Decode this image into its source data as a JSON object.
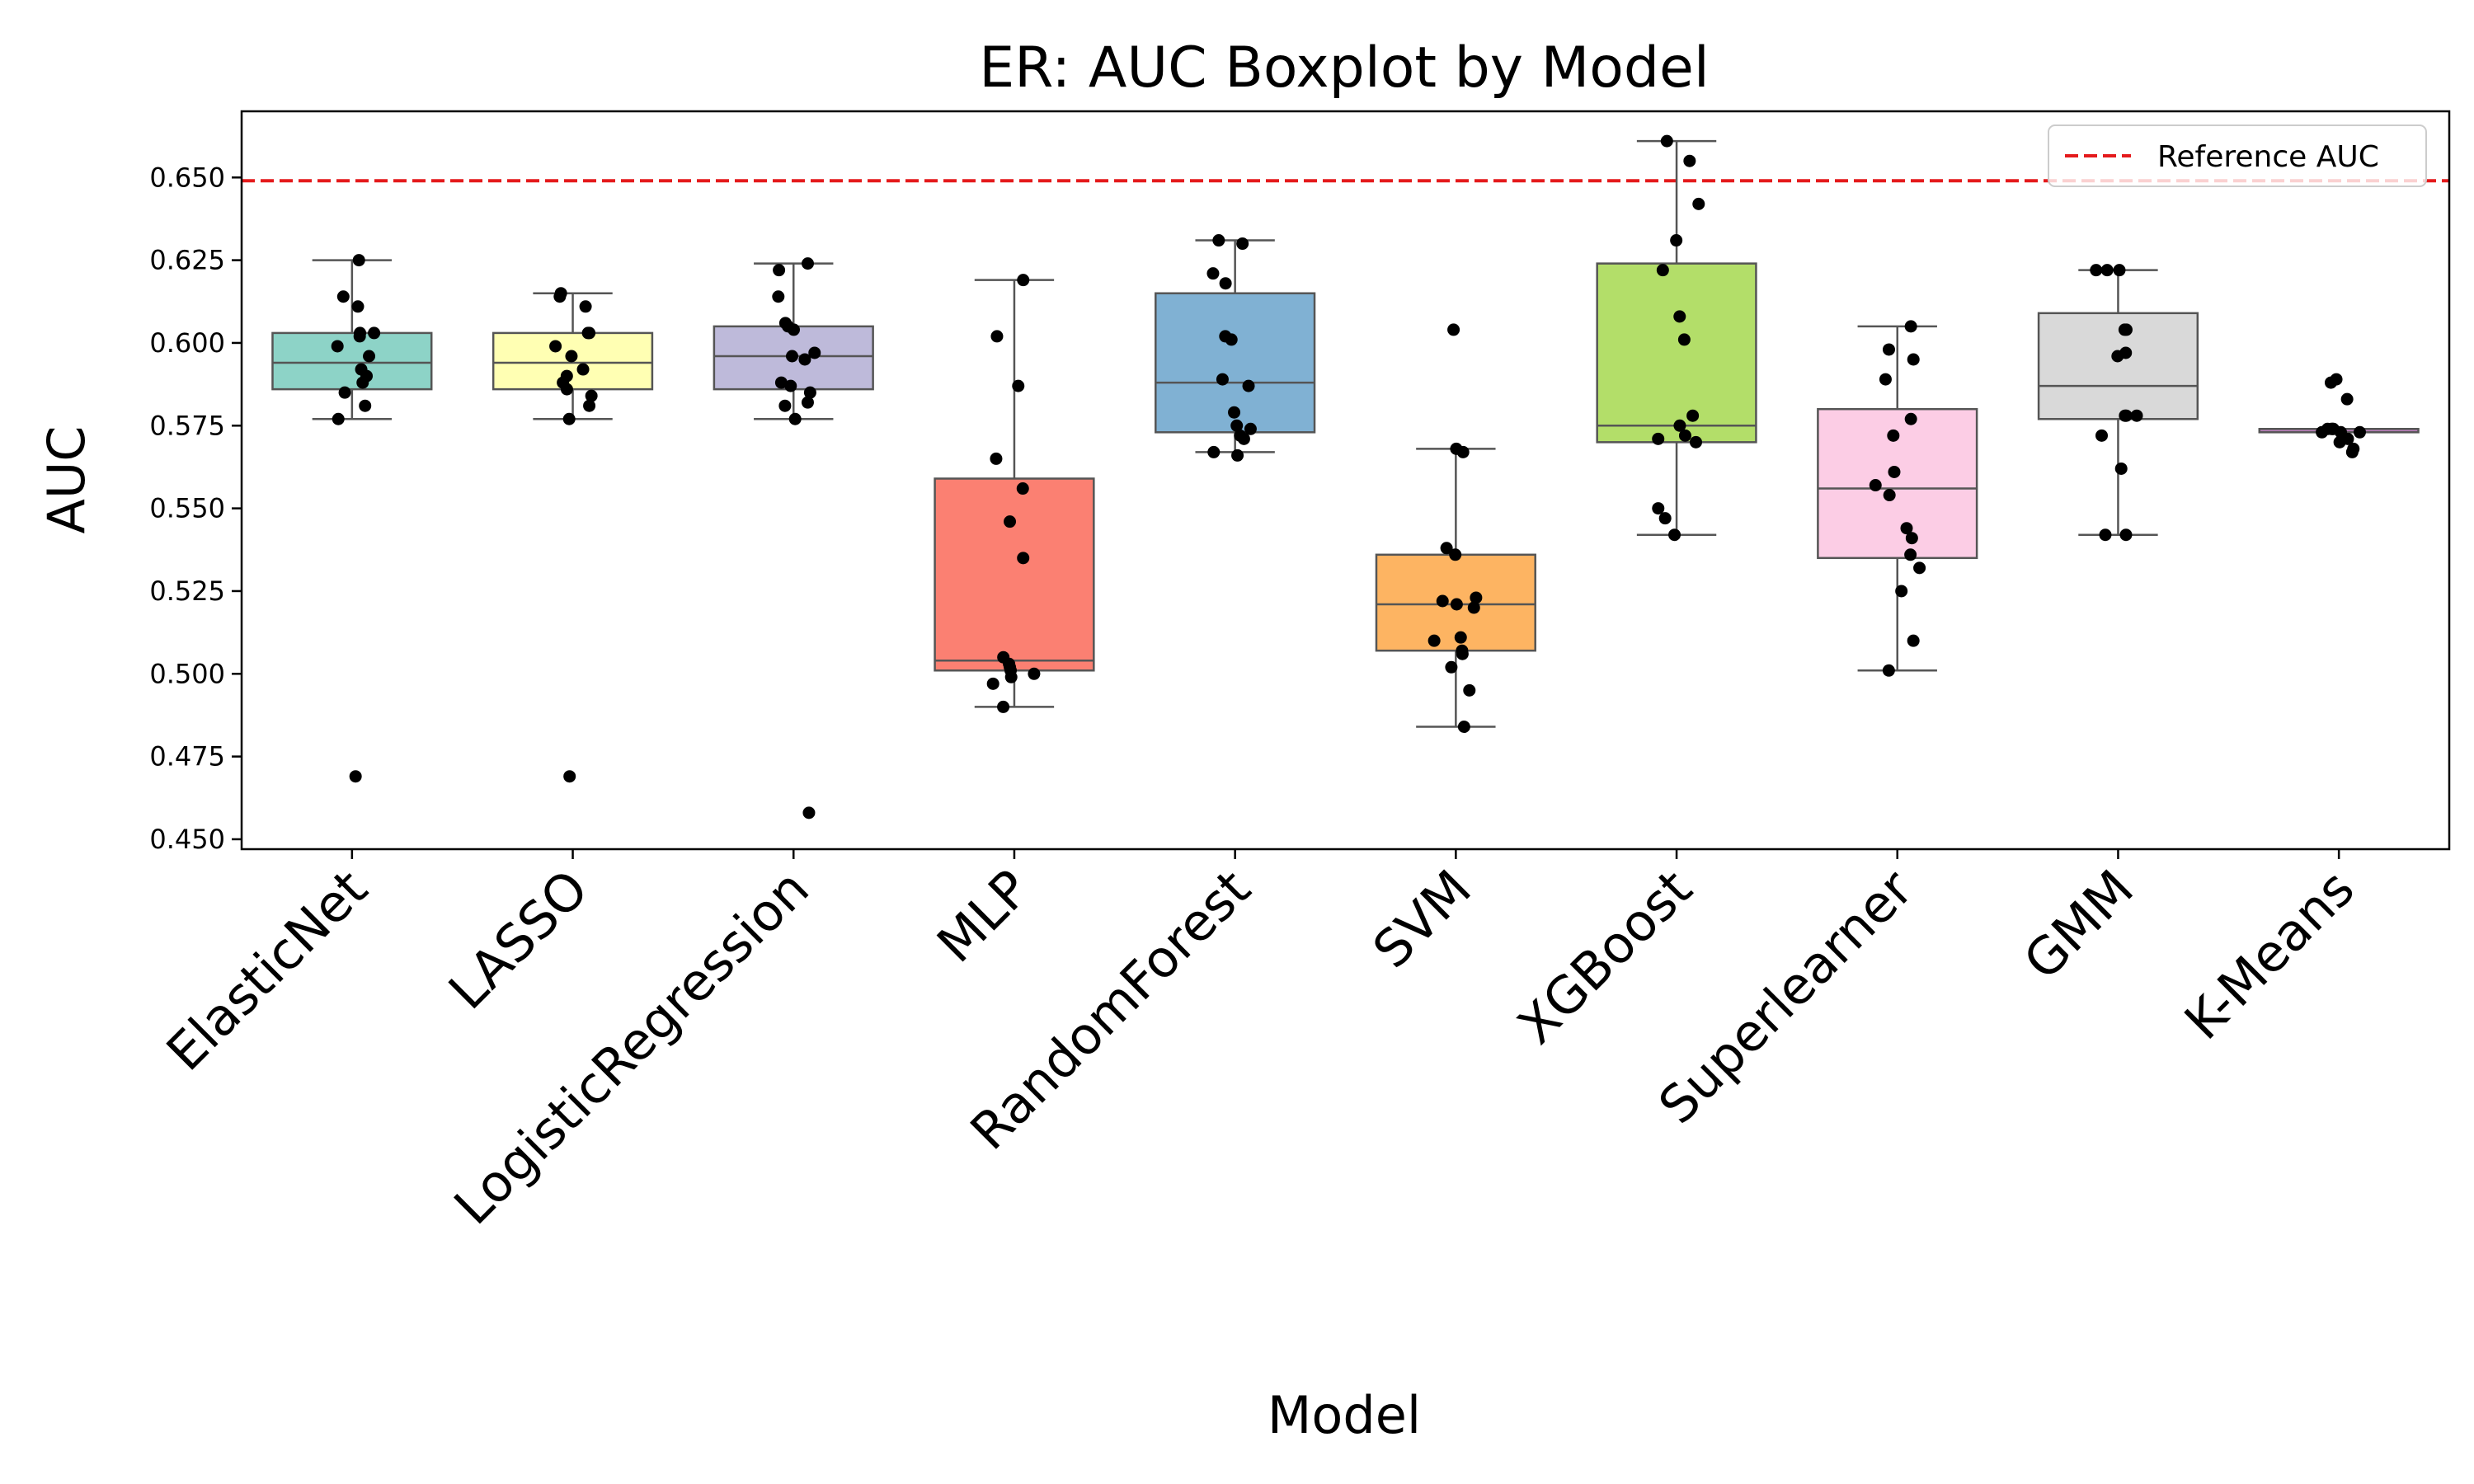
{
  "chart_data": {
    "type": "box",
    "title": "ER: AUC Boxplot by Model",
    "xlabel": "Model",
    "ylabel": "AUC",
    "ylim": [
      0.447,
      0.67
    ],
    "yticks": [
      "0.450",
      "0.475",
      "0.500",
      "0.525",
      "0.550",
      "0.575",
      "0.600",
      "0.625",
      "0.650"
    ],
    "grid": false,
    "legend": {
      "position": "top-right",
      "entries": [
        "Reference AUC"
      ]
    },
    "reference_line": {
      "name": "Reference AUC",
      "y": 0.649,
      "color": "#e41a1c",
      "style": "dashed"
    },
    "categories": [
      "ElasticNet",
      "LASSO",
      "LogisticRegression",
      "MLP",
      "RandomForest",
      "SVM",
      "XGBoost",
      "Superlearner",
      "GMM",
      "K-Means"
    ],
    "boxes": [
      {
        "name": "ElasticNet",
        "color": "#8dd3c7",
        "whisker_low": 0.577,
        "q1": 0.586,
        "median": 0.594,
        "q3": 0.603,
        "whisker_high": 0.625,
        "points": [
          0.625,
          0.614,
          0.611,
          0.603,
          0.603,
          0.602,
          0.599,
          0.596,
          0.592,
          0.59,
          0.588,
          0.585,
          0.581,
          0.577,
          0.469
        ]
      },
      {
        "name": "LASSO",
        "color": "#ffffb3",
        "whisker_low": 0.577,
        "q1": 0.586,
        "median": 0.594,
        "q3": 0.603,
        "whisker_high": 0.615,
        "points": [
          0.615,
          0.614,
          0.611,
          0.603,
          0.603,
          0.599,
          0.596,
          0.592,
          0.59,
          0.588,
          0.586,
          0.584,
          0.581,
          0.577,
          0.469
        ]
      },
      {
        "name": "LogisticRegression",
        "color": "#bebada",
        "whisker_low": 0.577,
        "q1": 0.586,
        "median": 0.596,
        "q3": 0.605,
        "whisker_high": 0.624,
        "points": [
          0.624,
          0.622,
          0.614,
          0.606,
          0.605,
          0.604,
          0.597,
          0.596,
          0.595,
          0.588,
          0.587,
          0.585,
          0.582,
          0.581,
          0.577,
          0.458
        ]
      },
      {
        "name": "MLP",
        "color": "#fb8072",
        "whisker_low": 0.49,
        "q1": 0.501,
        "median": 0.504,
        "q3": 0.559,
        "whisker_high": 0.619,
        "points": [
          0.619,
          0.602,
          0.587,
          0.565,
          0.556,
          0.546,
          0.535,
          0.505,
          0.503,
          0.502,
          0.501,
          0.5,
          0.499,
          0.497,
          0.49
        ]
      },
      {
        "name": "RandomForest",
        "color": "#80b1d3",
        "whisker_low": 0.567,
        "q1": 0.573,
        "median": 0.588,
        "q3": 0.615,
        "whisker_high": 0.631,
        "points": [
          0.631,
          0.63,
          0.621,
          0.618,
          0.602,
          0.601,
          0.589,
          0.587,
          0.579,
          0.575,
          0.574,
          0.572,
          0.571,
          0.567,
          0.566
        ]
      },
      {
        "name": "SVM",
        "color": "#fdb462",
        "whisker_low": 0.484,
        "q1": 0.507,
        "median": 0.521,
        "q3": 0.536,
        "whisker_high": 0.568,
        "points": [
          0.604,
          0.568,
          0.567,
          0.538,
          0.536,
          0.523,
          0.522,
          0.521,
          0.52,
          0.511,
          0.51,
          0.507,
          0.506,
          0.502,
          0.495,
          0.484
        ]
      },
      {
        "name": "XGBoost",
        "color": "#b3de69",
        "whisker_low": 0.542,
        "q1": 0.57,
        "median": 0.575,
        "q3": 0.624,
        "whisker_high": 0.661,
        "points": [
          0.661,
          0.655,
          0.642,
          0.631,
          0.622,
          0.608,
          0.601,
          0.578,
          0.575,
          0.572,
          0.571,
          0.57,
          0.55,
          0.547,
          0.542
        ]
      },
      {
        "name": "Superlearner",
        "color": "#fccde5",
        "whisker_low": 0.501,
        "q1": 0.535,
        "median": 0.556,
        "q3": 0.58,
        "whisker_high": 0.605,
        "points": [
          0.605,
          0.598,
          0.595,
          0.589,
          0.577,
          0.572,
          0.561,
          0.557,
          0.554,
          0.544,
          0.541,
          0.536,
          0.532,
          0.525,
          0.51,
          0.501
        ]
      },
      {
        "name": "GMM",
        "color": "#d9d9d9",
        "whisker_low": 0.542,
        "q1": 0.577,
        "median": 0.587,
        "q3": 0.609,
        "whisker_high": 0.622,
        "points": [
          0.622,
          0.622,
          0.622,
          0.604,
          0.604,
          0.597,
          0.596,
          0.578,
          0.578,
          0.578,
          0.572,
          0.562,
          0.542,
          0.542
        ]
      },
      {
        "name": "K-Means",
        "color": "#bc80bd",
        "whisker_low": 0.573,
        "q1": 0.573,
        "median": 0.574,
        "q3": 0.574,
        "whisker_high": 0.574,
        "points": [
          0.589,
          0.588,
          0.583,
          0.574,
          0.574,
          0.574,
          0.574,
          0.573,
          0.573,
          0.573,
          0.571,
          0.57,
          0.568,
          0.567
        ]
      }
    ]
  }
}
